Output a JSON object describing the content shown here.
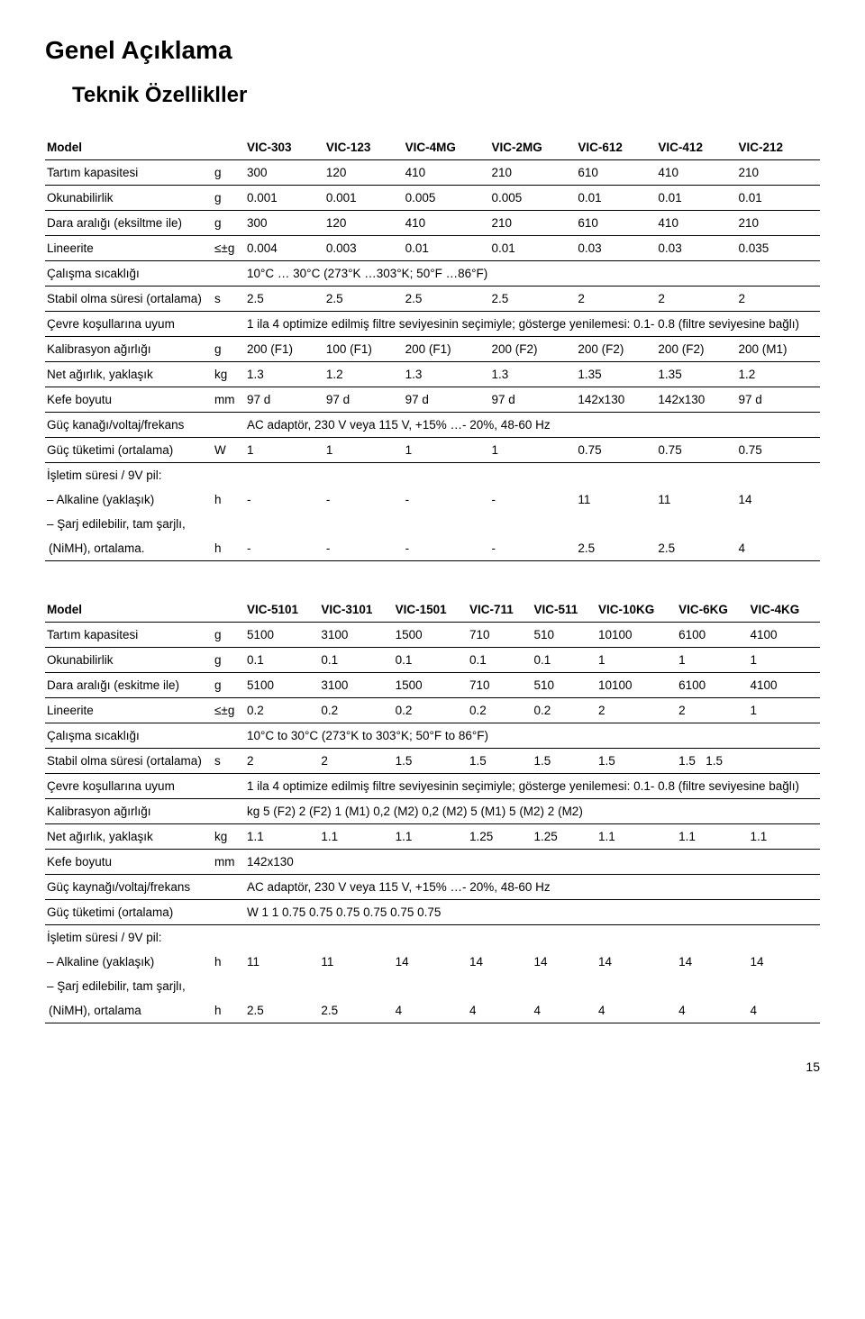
{
  "page": {
    "title": "Genel Açıklama",
    "subtitle": "Teknik Özellikller",
    "page_number": "15"
  },
  "table1": {
    "headers": [
      "Model",
      "",
      "VIC-303",
      "VIC-123",
      "VIC-4MG",
      "VIC-2MG",
      "VIC-612",
      "VIC-412",
      "VIC-212"
    ],
    "rows": {
      "tartim": [
        "Tartım kapasitesi",
        "g",
        "300",
        "120",
        "410",
        "210",
        "610",
        "410",
        "210"
      ],
      "okunabilirlik": [
        "Okunabilirlik",
        "g",
        "0.001",
        "0.001",
        "0.005",
        "0.005",
        "0.01",
        "0.01",
        "0.01"
      ],
      "dara": [
        "Dara aralığı (eksiltme ile)",
        "g",
        "300",
        "120",
        "410",
        "210",
        "610",
        "410",
        "210"
      ],
      "lineerite": [
        "Lineerite",
        "≤±g",
        "0.004",
        "0.003",
        "0.01",
        "0.01",
        "0.03",
        "0.03",
        "0.035"
      ],
      "calisma": [
        "Çalışma sıcaklığı",
        "",
        "10°C … 30°C (273°K …303°K; 50°F …86°F)"
      ],
      "stabil": [
        "Stabil olma süresi (ortalama)",
        "s",
        "2.5",
        "2.5",
        "2.5",
        "2.5",
        "2",
        "2",
        "2"
      ],
      "cevre": [
        "Çevre koşullarına uyum",
        "",
        "1 ila 4 optimize edilmiş filtre seviyesinin seçimiyle; gösterge yenilemesi: 0.1- 0.8 (filtre seviyesine bağlı)"
      ],
      "kalibrasyon": [
        "Kalibrasyon ağırlığı",
        "g",
        "200 (F1)",
        "100 (F1)",
        "200 (F1)",
        "200 (F2)",
        "200 (F2)",
        "200 (F2)",
        "200 (M1)"
      ],
      "netagirlik": [
        "Net ağırlık, yaklaşık",
        "kg",
        "1.3",
        "1.2",
        "1.3",
        "1.3",
        "1.35",
        "1.35",
        "1.2"
      ],
      "kefe": [
        "Kefe boyutu",
        "mm",
        "97 d",
        "97 d",
        "97 d",
        "97 d",
        "142x130",
        "142x130",
        "97 d"
      ],
      "guckanagi": [
        "Güç kanağı/voltaj/frekans",
        "",
        "AC adaptör, 230 V veya 115 V, +15% …- 20%, 48-60 Hz"
      ],
      "guctuketimi": [
        "Güç tüketimi (ortalama)",
        "W",
        "1",
        "1",
        "1",
        "1",
        "0.75",
        "0.75",
        "0.75"
      ],
      "isletim_label": "İşletim süresi / 9V pil:",
      "alkaline": [
        "– Alkaline (yaklaşık)",
        "h",
        "-",
        "-",
        "-",
        "-",
        "11",
        "11",
        "14"
      ],
      "sarj_label": "– Şarj edilebilir, tam şarjlı,",
      "nimh": [
        "   (NiMH), ortalama.",
        "h",
        "-",
        "-",
        "-",
        "-",
        "2.5",
        "2.5",
        "4"
      ]
    }
  },
  "table2": {
    "headers": [
      "Model",
      "",
      "VIC-5101",
      "VIC-3101",
      "VIC-1501",
      "VIC-711",
      "VIC-511",
      "VIC-10KG",
      "VIC-6KG",
      "VIC-4KG"
    ],
    "rows": {
      "tartim": [
        "Tartım kapasitesi",
        "g",
        "5100",
        "3100",
        "1500",
        "710",
        "510",
        "10100",
        "6100",
        "4100"
      ],
      "okunabilirlik": [
        "Okunabilirlik",
        "g",
        "0.1",
        "0.1",
        "0.1",
        "0.1",
        "0.1",
        "1",
        "1",
        "1"
      ],
      "dara": [
        "Dara aralığı (eskitme ile)",
        "g",
        "5100",
        "3100",
        "1500",
        "710",
        "510",
        "10100",
        "6100",
        "4100"
      ],
      "lineerite": [
        "Lineerite",
        "≤±g",
        "0.2",
        "0.2",
        "0.2",
        "0.2",
        "0.2",
        "2",
        "2",
        "1"
      ],
      "calisma": [
        "Çalışma sıcaklığı",
        "",
        "10°C to 30°C (273°K to 303°K; 50°F to 86°F)"
      ],
      "stabil": [
        "Stabil olma süresi (ortalama)",
        "s",
        "2",
        "2",
        "1.5",
        "1.5",
        "1.5",
        "1.5",
        "1.5",
        "1.5"
      ],
      "cevre": [
        "Çevre koşullarına uyum",
        "",
        "1 ila 4 optimize edilmiş filtre seviyesinin seçimiyle; gösterge yenilemesi: 0.1- 0.8 (filtre seviyesine bağlı)"
      ],
      "kalibrasyon": [
        "Kalibrasyon ağırlığı",
        "",
        "kg 5 (F2)  2 (F2)  1 (M1) 0,2 (M2) 0,2 (M2) 5 (M1) 5 (M2) 2 (M2)"
      ],
      "netagirlik": [
        "Net ağırlık, yaklaşık",
        "kg",
        "1.1",
        "1.1",
        "1.1",
        "1.25",
        "1.25",
        "1.1",
        "1.1",
        "1.1"
      ],
      "kefe": [
        "Kefe boyutu",
        "mm",
        "142x130"
      ],
      "guckaynagi": [
        "Güç kaynağı/voltaj/frekans",
        "",
        "AC adaptör, 230 V veya 115 V, +15% …- 20%, 48-60 Hz"
      ],
      "guctuketimi": [
        "Güç tüketimi (ortalama)",
        "",
        "W 1 1 0.75  0.75  0.75  0.75  0.75 0.75"
      ],
      "isletim_label": "İşletim süresi / 9V pil:",
      "alkaline": [
        "– Alkaline (yaklaşık)",
        "h",
        "11",
        "11",
        "14",
        "14",
        "14",
        "14",
        "14",
        "14"
      ],
      "sarj_label": "– Şarj edilebilir, tam şarjlı,",
      "nimh": [
        "   (NiMH), ortalama",
        "h",
        "2.5",
        "2.5",
        "4",
        "4",
        "4",
        "4",
        "4",
        "4"
      ]
    }
  }
}
